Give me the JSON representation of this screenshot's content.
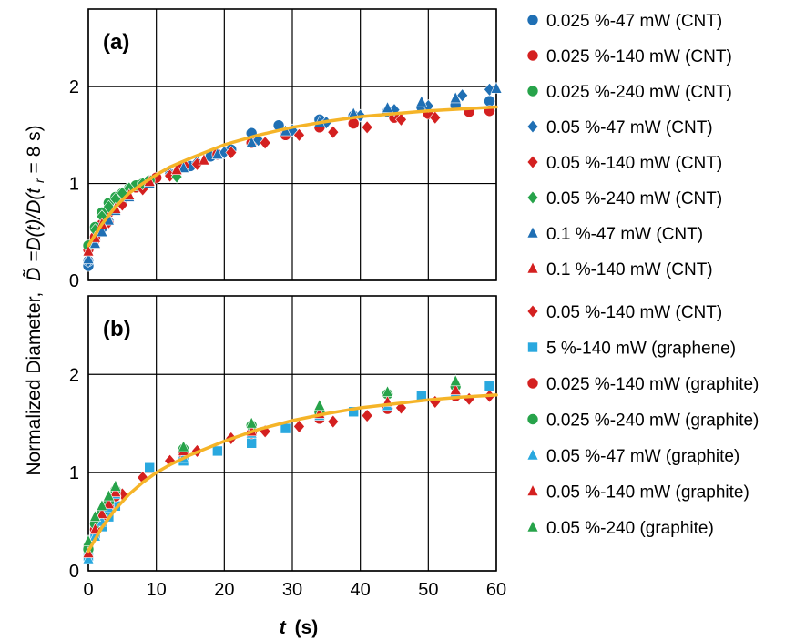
{
  "colors": {
    "blue": "#1f6fb4",
    "red": "#d42020",
    "green": "#27a34a",
    "cyan": "#29a8df",
    "fit": "#f5b428",
    "grid": "#000000"
  },
  "y_axis_label": {
    "pre": "Normalized Diameter,",
    "d_sym": "D̃",
    "eq": "=D(t)/D(t",
    "sub": "r",
    "post": " = 8 s)"
  },
  "x_axis_label": {
    "var": "t",
    "unit": "(s)"
  },
  "chart_data": [
    {
      "type": "scatter",
      "panel_label": "(a)",
      "xlim": [
        0,
        60
      ],
      "ylim": [
        0,
        2.8
      ],
      "x_ticks": [
        0,
        10,
        20,
        30,
        40,
        50,
        60
      ],
      "y_ticks": [
        0,
        1,
        2
      ],
      "grid": true,
      "legend_position": "right",
      "fit_curve": {
        "color": "orange",
        "points": [
          [
            0,
            0.36
          ],
          [
            2,
            0.58
          ],
          [
            4,
            0.76
          ],
          [
            6,
            0.9
          ],
          [
            8,
            1.0
          ],
          [
            10,
            1.09
          ],
          [
            12,
            1.17
          ],
          [
            15,
            1.26
          ],
          [
            20,
            1.4
          ],
          [
            25,
            1.5
          ],
          [
            30,
            1.58
          ],
          [
            35,
            1.64
          ],
          [
            40,
            1.69
          ],
          [
            45,
            1.72
          ],
          [
            50,
            1.75
          ],
          [
            55,
            1.77
          ],
          [
            60,
            1.79
          ]
        ]
      },
      "series": [
        {
          "name": "0.025 %-47 mW (CNT)",
          "marker": "circle",
          "color": "blue",
          "points": [
            [
              0,
              0.15
            ],
            [
              0,
              0.2
            ],
            [
              1,
              0.42
            ],
            [
              2,
              0.55
            ],
            [
              3,
              0.7
            ],
            [
              5,
              0.84
            ],
            [
              7,
              0.96
            ],
            [
              9,
              1.02
            ],
            [
              12,
              1.1
            ],
            [
              15,
              1.18
            ],
            [
              18,
              1.28
            ],
            [
              21,
              1.35
            ],
            [
              24,
              1.52
            ],
            [
              28,
              1.6
            ],
            [
              34,
              1.66
            ],
            [
              39,
              1.7
            ],
            [
              44,
              1.74
            ],
            [
              49,
              1.79
            ],
            [
              54,
              1.81
            ],
            [
              59,
              1.85
            ]
          ]
        },
        {
          "name": "0.025 %-140 mW (CNT)",
          "marker": "circle",
          "color": "red",
          "points": [
            [
              0,
              0.32
            ],
            [
              1,
              0.45
            ],
            [
              2,
              0.58
            ],
            [
              3,
              0.7
            ],
            [
              5,
              0.84
            ],
            [
              7,
              0.96
            ],
            [
              10,
              1.06
            ],
            [
              14,
              1.18
            ],
            [
              19,
              1.3
            ],
            [
              24,
              1.42
            ],
            [
              29,
              1.5
            ],
            [
              34,
              1.58
            ],
            [
              39,
              1.62
            ],
            [
              45,
              1.68
            ],
            [
              50,
              1.72
            ],
            [
              56,
              1.74
            ],
            [
              59,
              1.75
            ]
          ]
        },
        {
          "name": "0.025 %-240 mW (CNT)",
          "marker": "circle",
          "color": "green",
          "points": [
            [
              0,
              0.36
            ],
            [
              1,
              0.55
            ],
            [
              2,
              0.7
            ],
            [
              3,
              0.8
            ],
            [
              4,
              0.86
            ],
            [
              5,
              0.9
            ],
            [
              6,
              0.95
            ],
            [
              7,
              0.98
            ],
            [
              8,
              1.0
            ],
            [
              9,
              1.03
            ]
          ]
        },
        {
          "name": "0.05 %-47 mW (CNT)",
          "marker": "diamond",
          "color": "blue",
          "points": [
            [
              0,
              0.2
            ],
            [
              1,
              0.4
            ],
            [
              2,
              0.52
            ],
            [
              3,
              0.62
            ],
            [
              5,
              0.8
            ],
            [
              8,
              0.96
            ],
            [
              12,
              1.1
            ],
            [
              16,
              1.22
            ],
            [
              20,
              1.32
            ],
            [
              25,
              1.45
            ],
            [
              30,
              1.55
            ],
            [
              35,
              1.63
            ],
            [
              40,
              1.7
            ],
            [
              45,
              1.76
            ],
            [
              50,
              1.8
            ],
            [
              55,
              1.91
            ],
            [
              59,
              1.97
            ]
          ]
        },
        {
          "name": "0.05 %-140 mW (CNT)",
          "marker": "diamond",
          "color": "red",
          "points": [
            [
              1,
              0.4
            ],
            [
              3,
              0.6
            ],
            [
              5,
              0.78
            ],
            [
              8,
              0.94
            ],
            [
              12,
              1.08
            ],
            [
              16,
              1.2
            ],
            [
              21,
              1.32
            ],
            [
              26,
              1.42
            ],
            [
              31,
              1.5
            ],
            [
              36,
              1.53
            ],
            [
              41,
              1.58
            ],
            [
              46,
              1.66
            ],
            [
              51,
              1.68
            ]
          ]
        },
        {
          "name": "0.05 %-240 mW (CNT)",
          "marker": "diamond",
          "color": "green",
          "points": [
            [
              1,
              0.52
            ],
            [
              2,
              0.66
            ],
            [
              3,
              0.76
            ],
            [
              4,
              0.84
            ],
            [
              5,
              0.9
            ],
            [
              6,
              0.95
            ],
            [
              8,
              1.0
            ],
            [
              13,
              1.07
            ]
          ]
        },
        {
          "name": "0.1 %-47 mW (CNT)",
          "marker": "triangle",
          "color": "blue",
          "points": [
            [
              0,
              0.22
            ],
            [
              1,
              0.38
            ],
            [
              2,
              0.5
            ],
            [
              3,
              0.62
            ],
            [
              4,
              0.72
            ],
            [
              6,
              0.86
            ],
            [
              9,
              1.0
            ],
            [
              14,
              1.16
            ],
            [
              19,
              1.3
            ],
            [
              24,
              1.42
            ],
            [
              29,
              1.54
            ],
            [
              34,
              1.63
            ],
            [
              39,
              1.72
            ],
            [
              44,
              1.78
            ],
            [
              49,
              1.84
            ],
            [
              54,
              1.88
            ],
            [
              60,
              1.98
            ]
          ]
        },
        {
          "name": "0.1 %-140 mW (CNT)",
          "marker": "triangle",
          "color": "red",
          "points": [
            [
              0,
              0.3
            ],
            [
              1,
              0.44
            ],
            [
              2,
              0.58
            ],
            [
              4,
              0.74
            ],
            [
              6,
              0.88
            ],
            [
              9,
              1.02
            ],
            [
              13,
              1.14
            ],
            [
              17,
              1.24
            ]
          ]
        }
      ]
    },
    {
      "type": "scatter",
      "panel_label": "(b)",
      "xlim": [
        0,
        60
      ],
      "ylim": [
        0,
        2.8
      ],
      "x_ticks": [
        0,
        10,
        20,
        30,
        40,
        50,
        60
      ],
      "y_ticks": [
        0,
        1,
        2
      ],
      "grid": true,
      "legend_position": "right",
      "fit_curve": {
        "color": "orange",
        "points": [
          [
            0,
            0.2
          ],
          [
            2,
            0.44
          ],
          [
            4,
            0.63
          ],
          [
            6,
            0.78
          ],
          [
            8,
            0.9
          ],
          [
            10,
            1.0
          ],
          [
            12,
            1.08
          ],
          [
            15,
            1.18
          ],
          [
            20,
            1.32
          ],
          [
            25,
            1.44
          ],
          [
            30,
            1.53
          ],
          [
            35,
            1.6
          ],
          [
            40,
            1.66
          ],
          [
            45,
            1.7
          ],
          [
            50,
            1.74
          ],
          [
            55,
            1.77
          ],
          [
            60,
            1.79
          ]
        ]
      },
      "series": [
        {
          "name": "0.05 %-140 mW (CNT)",
          "marker": "diamond",
          "color": "red",
          "points": [
            [
              1,
              0.4
            ],
            [
              3,
              0.6
            ],
            [
              5,
              0.78
            ],
            [
              8,
              0.95
            ],
            [
              12,
              1.12
            ],
            [
              16,
              1.22
            ],
            [
              21,
              1.35
            ],
            [
              26,
              1.42
            ],
            [
              31,
              1.47
            ],
            [
              36,
              1.52
            ],
            [
              41,
              1.58
            ],
            [
              46,
              1.66
            ],
            [
              51,
              1.72
            ],
            [
              56,
              1.75
            ],
            [
              59,
              1.78
            ]
          ]
        },
        {
          "name": "5 %-140 mW (graphene)",
          "marker": "square",
          "color": "cyan",
          "points": [
            [
              0,
              0.15
            ],
            [
              1,
              0.36
            ],
            [
              2,
              0.45
            ],
            [
              3,
              0.55
            ],
            [
              4,
              0.66
            ],
            [
              9,
              1.05
            ],
            [
              14,
              1.12
            ],
            [
              19,
              1.22
            ],
            [
              24,
              1.3
            ],
            [
              29,
              1.45
            ],
            [
              39,
              1.62
            ],
            [
              49,
              1.78
            ],
            [
              59,
              1.88
            ]
          ]
        },
        {
          "name": "0.025 %-140 mW (graphite)",
          "marker": "circle",
          "color": "red",
          "points": [
            [
              0,
              0.25
            ],
            [
              1,
              0.42
            ],
            [
              2,
              0.56
            ],
            [
              3,
              0.66
            ],
            [
              4,
              0.76
            ],
            [
              14,
              1.2
            ],
            [
              24,
              1.4
            ],
            [
              34,
              1.55
            ],
            [
              44,
              1.65
            ],
            [
              54,
              1.78
            ]
          ]
        },
        {
          "name": "0.025 %-240 mW (graphite)",
          "marker": "circle",
          "color": "green",
          "points": [
            [
              0,
              0.22
            ],
            [
              1,
              0.48
            ],
            [
              2,
              0.6
            ],
            [
              3,
              0.7
            ],
            [
              4,
              0.82
            ],
            [
              14,
              1.24
            ],
            [
              24,
              1.48
            ],
            [
              34,
              1.62
            ],
            [
              44,
              1.8
            ],
            [
              54,
              1.88
            ]
          ]
        },
        {
          "name": "0.05 %-47 mW (graphite)",
          "marker": "triangle",
          "color": "cyan",
          "points": [
            [
              0,
              0.12
            ],
            [
              1,
              0.35
            ],
            [
              2,
              0.5
            ],
            [
              3,
              0.64
            ],
            [
              4,
              0.78
            ],
            [
              14,
              1.15
            ],
            [
              24,
              1.4
            ],
            [
              34,
              1.58
            ],
            [
              44,
              1.68
            ],
            [
              54,
              1.82
            ]
          ]
        },
        {
          "name": "0.05 %-140 mW (graphite)",
          "marker": "triangle",
          "color": "red",
          "points": [
            [
              0,
              0.18
            ],
            [
              1,
              0.42
            ],
            [
              2,
              0.58
            ],
            [
              3,
              0.68
            ],
            [
              4,
              0.8
            ],
            [
              14,
              1.22
            ],
            [
              24,
              1.42
            ],
            [
              34,
              1.6
            ],
            [
              44,
              1.72
            ],
            [
              54,
              1.84
            ]
          ]
        },
        {
          "name": "0.05 %-240 (graphite)",
          "marker": "triangle",
          "color": "green",
          "points": [
            [
              0,
              0.3
            ],
            [
              1,
              0.55
            ],
            [
              2,
              0.66
            ],
            [
              3,
              0.76
            ],
            [
              4,
              0.86
            ],
            [
              14,
              1.26
            ],
            [
              24,
              1.5
            ],
            [
              34,
              1.68
            ],
            [
              44,
              1.82
            ],
            [
              54,
              1.93
            ]
          ]
        }
      ]
    }
  ]
}
